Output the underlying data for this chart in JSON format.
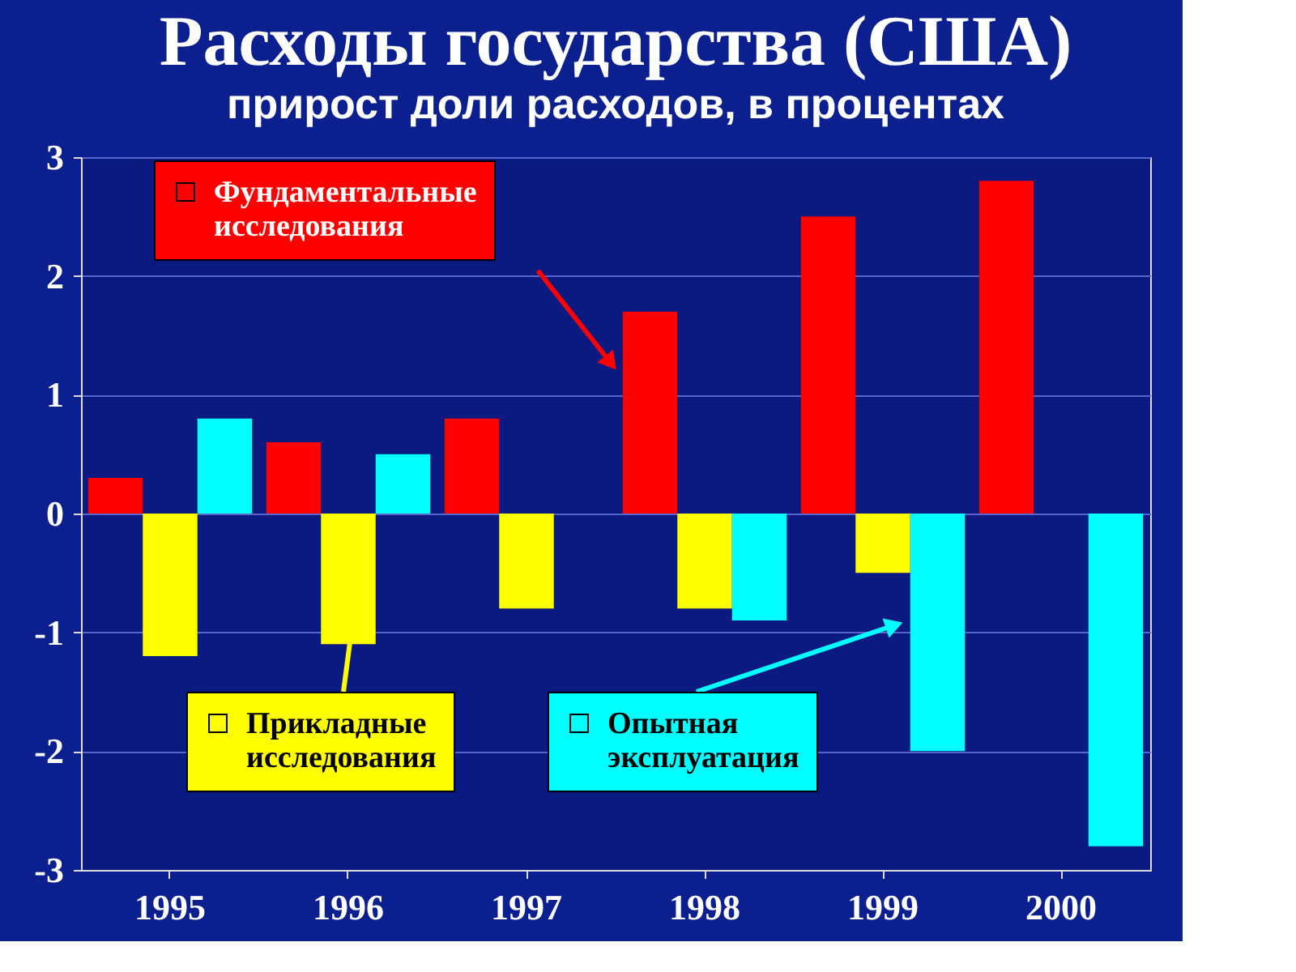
{
  "chart_data": {
    "type": "bar",
    "title": "Расходы государства (США)",
    "subtitle": "прирост доли расходов, в процентах",
    "categories": [
      "1995",
      "1996",
      "1997",
      "1998",
      "1999",
      "2000"
    ],
    "series": [
      {
        "name": "Фундаментальные исследования",
        "color": "#ff0000",
        "values": [
          0.3,
          0.6,
          0.8,
          1.7,
          2.5,
          2.8
        ]
      },
      {
        "name": "Прикладные исследования",
        "color": "#ffff00",
        "values": [
          -1.2,
          -1.1,
          -0.8,
          -0.8,
          -0.5,
          0
        ]
      },
      {
        "name": "Опытная эксплуатация",
        "color": "#00ffff",
        "values": [
          0.8,
          0.5,
          0,
          -0.9,
          -2.0,
          -2.8
        ]
      }
    ],
    "ylim": [
      -3,
      3
    ],
    "yticks": [
      -3,
      -2,
      -1,
      0,
      1,
      2,
      3
    ],
    "grid": "y",
    "legend": "top left"
  }
}
